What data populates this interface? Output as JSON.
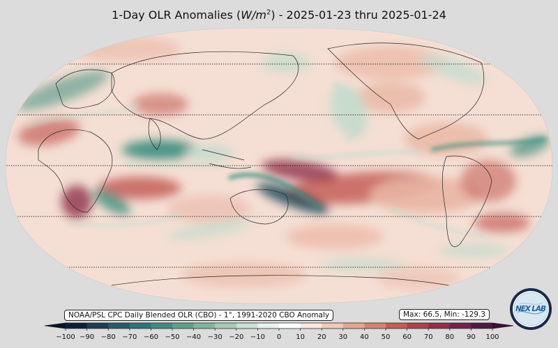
{
  "title": {
    "prefix": "1-Day OLR Anomalies (",
    "unit_base": "W/m",
    "unit_exp": "2",
    "suffix": ") - 2025-01-23 thru 2025-01-24"
  },
  "source_label": "NOAA/PSL CPC Daily Blended OLR (CBO) - 1°, 1991-2020 CBO Anomaly",
  "stats_label": "Max: 66.5,  Min: -129.3",
  "logo": {
    "text": "NEX LAB",
    "icon": "nexlab-globe-logo"
  },
  "colorbar": {
    "ticks": [
      "−100",
      "−90",
      "−80",
      "−70",
      "−60",
      "−50",
      "−40",
      "−30",
      "−20",
      "−10",
      "0",
      "10",
      "20",
      "30",
      "40",
      "50",
      "60",
      "70",
      "80",
      "90",
      "100"
    ],
    "colors": [
      "#0b2037",
      "#1c3d55",
      "#245c6c",
      "#26777a",
      "#3a8e80",
      "#5aa28c",
      "#7db69e",
      "#a3ccb6",
      "#c9e2d3",
      "#e9f3ee",
      "#ffffff",
      "#fbe7df",
      "#f2c8b8",
      "#e6a592",
      "#d8826f",
      "#c65d54",
      "#b14049",
      "#952e48",
      "#76204a",
      "#541644"
    ],
    "low_extend_color": "#061525",
    "high_extend_color": "#3c0f33"
  },
  "map": {
    "projection": "robinson",
    "parallels": "dotted",
    "field_colors": {
      "ocean_base": "#f5dfd4",
      "positive_weak": "#e9b5a3",
      "positive_strong": "#c45f58",
      "positive_max": "#8e2f4a",
      "negative_weak": "#c4dccd",
      "negative_strong": "#3b8e7e",
      "negative_max": "#1c4a5a"
    }
  }
}
